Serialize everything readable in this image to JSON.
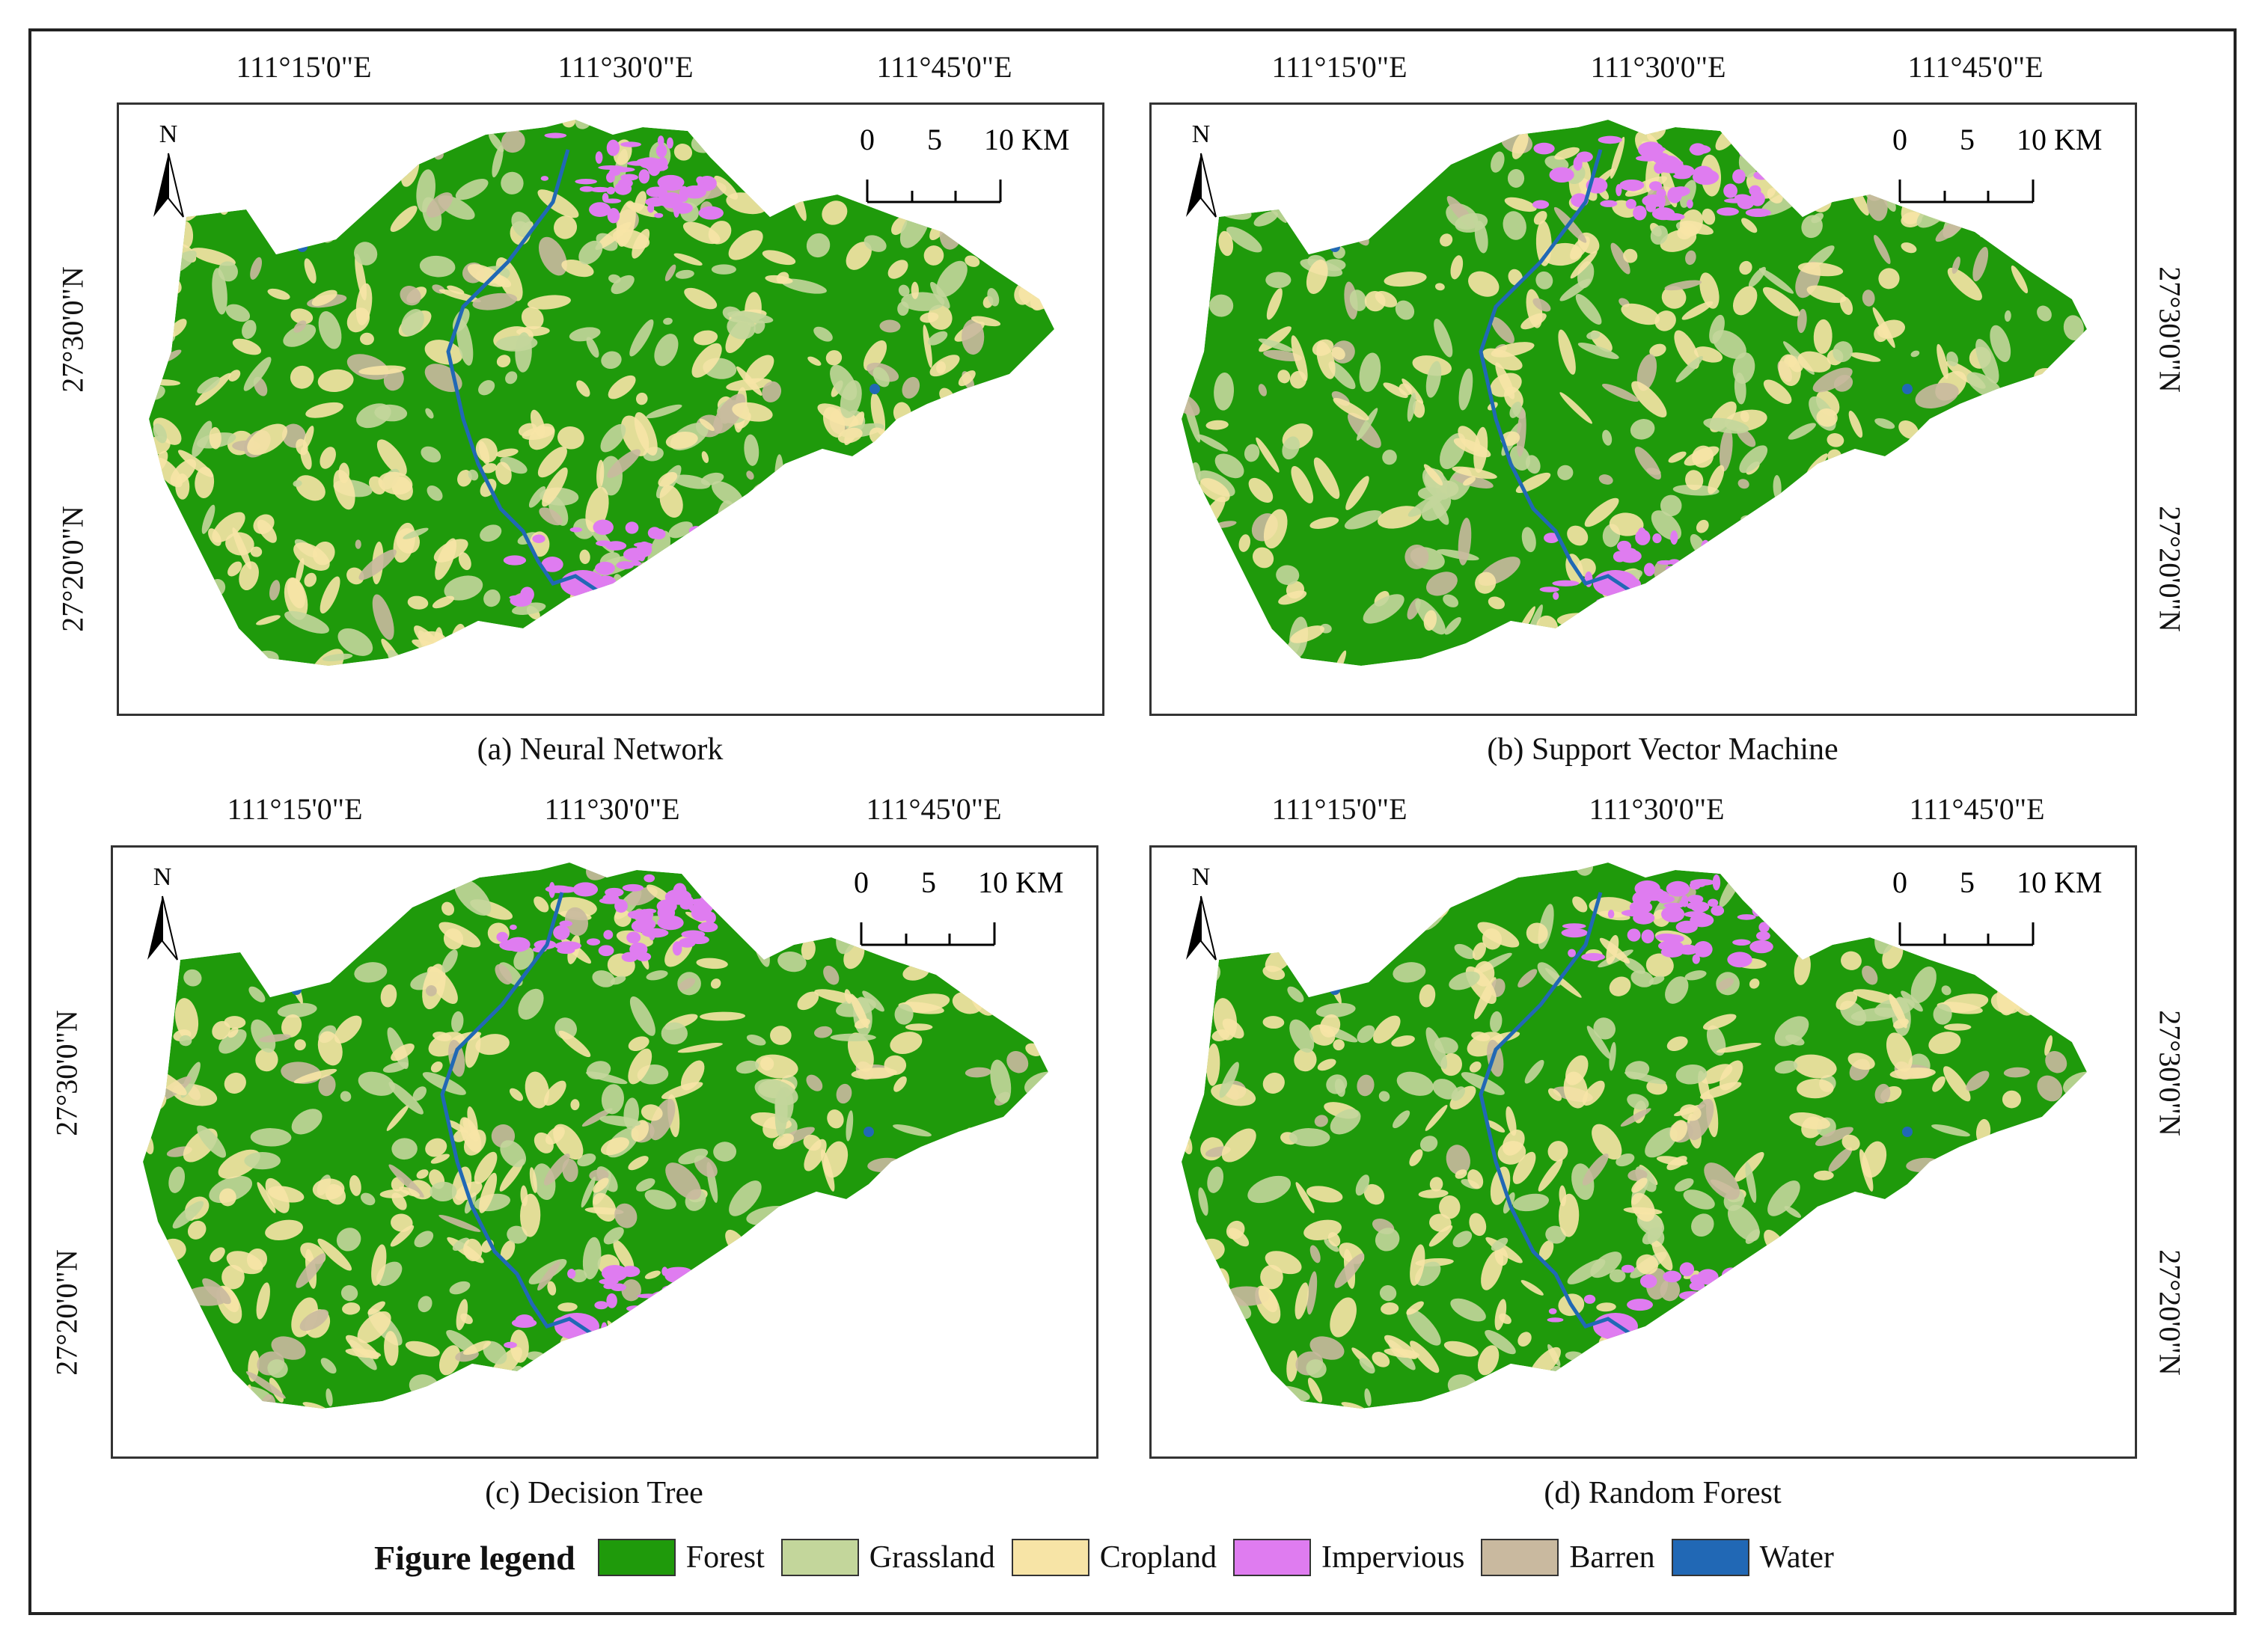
{
  "figure": {
    "panels": [
      {
        "id": "a",
        "caption": "(a) Neural Network"
      },
      {
        "id": "b",
        "caption": "(b) Support Vector Machine"
      },
      {
        "id": "c",
        "caption": "(c) Decision Tree"
      },
      {
        "id": "d",
        "caption": "(d) Random Forest"
      }
    ],
    "longitude_labels": [
      "111°15'0\"E",
      "111°30'0\"E",
      "111°45'0\"E"
    ],
    "latitude_labels": [
      "27°30'0\"N",
      "27°20'0\"N"
    ],
    "north_arrow": {
      "label": "N",
      "icon": "north-arrow-icon"
    },
    "scale_bar": {
      "ticks": [
        "0",
        "5",
        "10 KM"
      ]
    },
    "legend": {
      "title": "Figure legend",
      "items": [
        {
          "label": "Forest",
          "color": "#1f9a0b"
        },
        {
          "label": "Grassland",
          "color": "#c3d69b"
        },
        {
          "label": "Cropland",
          "color": "#f7e4a6"
        },
        {
          "label": "Impervious",
          "color": "#df7cf0"
        },
        {
          "label": "Barren",
          "color": "#c9b99f"
        },
        {
          "label": "Water",
          "color": "#2168b5"
        }
      ]
    }
  }
}
